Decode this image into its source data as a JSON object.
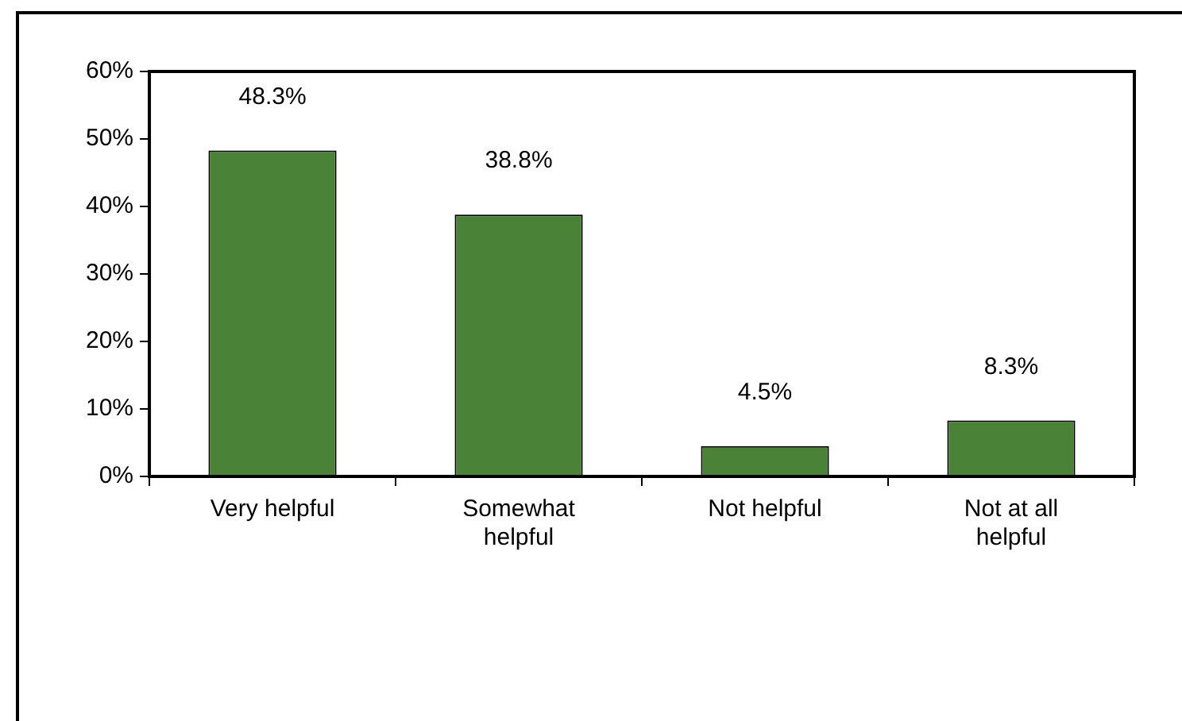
{
  "chart_data": {
    "type": "bar",
    "categories": [
      "Very helpful",
      "Somewhat helpful",
      "Not helpful",
      "Not at all helpful"
    ],
    "values": [
      48.3,
      38.8,
      4.5,
      8.3
    ],
    "color": "#4a8238",
    "ylim": [
      0,
      60
    ],
    "yticks": [
      {
        "value": 0,
        "label": "0%"
      },
      {
        "value": 10,
        "label": "10%"
      },
      {
        "value": 20,
        "label": "20%"
      },
      {
        "value": 30,
        "label": "30%"
      },
      {
        "value": 40,
        "label": "40%"
      },
      {
        "value": 50,
        "label": "50%"
      },
      {
        "value": 60,
        "label": "60%"
      }
    ],
    "value_labels": [
      "48.3%",
      "38.8%",
      "4.5%",
      "8.3%"
    ],
    "grid": false,
    "legend": false
  }
}
